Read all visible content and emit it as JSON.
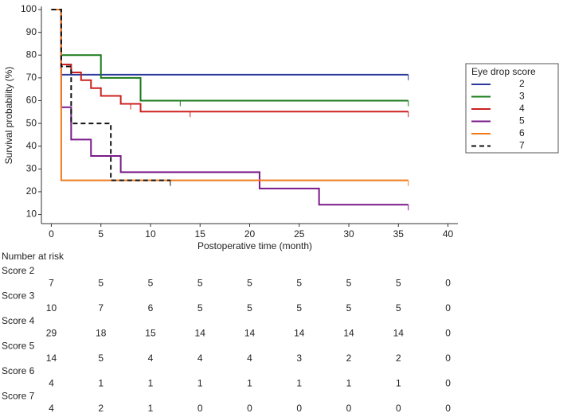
{
  "chart_data": {
    "type": "km",
    "xlabel": "Postoperative time (month)",
    "ylabel": "Survival probability (%)",
    "xlim": [
      -1,
      41
    ],
    "ylim": [
      6,
      100
    ],
    "xticks": [
      0,
      5,
      10,
      15,
      20,
      25,
      30,
      35,
      40
    ],
    "yticks": [
      10,
      20,
      30,
      40,
      50,
      60,
      70,
      80,
      90,
      100
    ],
    "legend_title": "Eye drop score",
    "legend_position": "right",
    "series": [
      {
        "name": "2",
        "color": "#2b3a9a",
        "dashed": false,
        "x": [
          0,
          1,
          36
        ],
        "values": [
          100,
          71.4,
          71.4
        ],
        "censored": [
          {
            "x": 36,
            "y": 71.4
          }
        ]
      },
      {
        "name": "3",
        "color": "#1a7a1a",
        "dashed": false,
        "x": [
          0,
          1,
          5,
          9,
          36
        ],
        "values": [
          100,
          80,
          70,
          60,
          60
        ],
        "censored": [
          {
            "x": 13,
            "y": 60
          },
          {
            "x": 36,
            "y": 60
          }
        ]
      },
      {
        "name": "4",
        "color": "#cc2020",
        "dashed": false,
        "x": [
          0,
          1,
          2,
          3,
          4,
          5,
          7,
          9,
          36
        ],
        "values": [
          100,
          75.9,
          72.4,
          69,
          65.5,
          62.1,
          58.6,
          55.2,
          55.2
        ],
        "censored": [
          {
            "x": 8,
            "y": 58.6
          },
          {
            "x": 14,
            "y": 55.2
          },
          {
            "x": 36,
            "y": 55.2
          }
        ]
      },
      {
        "name": "5",
        "color": "#7a1a8a",
        "dashed": false,
        "x": [
          0,
          1,
          2,
          4,
          7,
          21,
          27,
          36
        ],
        "values": [
          100,
          57.1,
          42.9,
          35.7,
          28.6,
          21.4,
          14.3,
          14.3
        ],
        "censored": [
          {
            "x": 36,
            "y": 14.3
          }
        ]
      },
      {
        "name": "6",
        "color": "#f07a1a",
        "dashed": false,
        "x": [
          0,
          1,
          36
        ],
        "values": [
          100,
          25,
          25
        ],
        "censored": [
          {
            "x": 36,
            "y": 25
          }
        ]
      },
      {
        "name": "7",
        "color": "#111111",
        "dashed": true,
        "x": [
          0,
          1,
          2,
          6,
          12
        ],
        "values": [
          100,
          75,
          50,
          25,
          25
        ],
        "censored": [
          {
            "x": 12,
            "y": 25
          }
        ]
      }
    ]
  },
  "risk_table": {
    "title": "Number at risk",
    "rows": [
      {
        "label": "Score 2",
        "counts": [
          7,
          5,
          5,
          5,
          5,
          5,
          5,
          5,
          0
        ]
      },
      {
        "label": "Score 3",
        "counts": [
          10,
          7,
          6,
          5,
          5,
          5,
          5,
          5,
          0
        ]
      },
      {
        "label": "Score 4",
        "counts": [
          29,
          18,
          15,
          14,
          14,
          14,
          14,
          14,
          0
        ]
      },
      {
        "label": "Score 5",
        "counts": [
          14,
          5,
          4,
          4,
          4,
          3,
          2,
          2,
          0
        ]
      },
      {
        "label": "Score 6",
        "counts": [
          4,
          1,
          1,
          1,
          1,
          1,
          1,
          1,
          0
        ]
      },
      {
        "label": "Score 7",
        "counts": [
          4,
          2,
          1,
          0,
          0,
          0,
          0,
          0,
          0
        ]
      }
    ]
  }
}
